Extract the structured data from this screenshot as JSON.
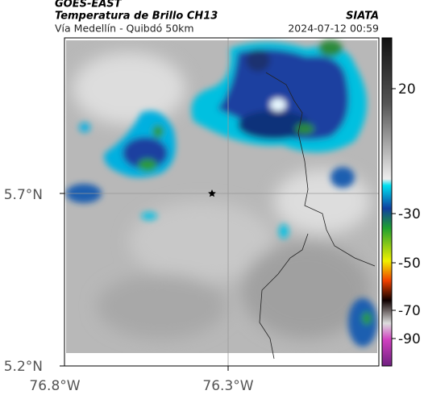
{
  "header": {
    "network": "GOES-EAST",
    "product": "Temperatura de Brillo CH13",
    "route": "Vía Medellín - Quibdó 50km",
    "agency": "SIATA",
    "timestamp": "2024-07-12 00:59"
  },
  "map": {
    "lat_labels": [
      "5.7°N",
      "5.2°N"
    ],
    "lon_labels": [
      "76.8°W",
      "76.3°W"
    ]
  },
  "colorbar": {
    "ticks": [
      "20",
      "-30",
      "-50",
      "-70",
      "-90"
    ]
  }
}
